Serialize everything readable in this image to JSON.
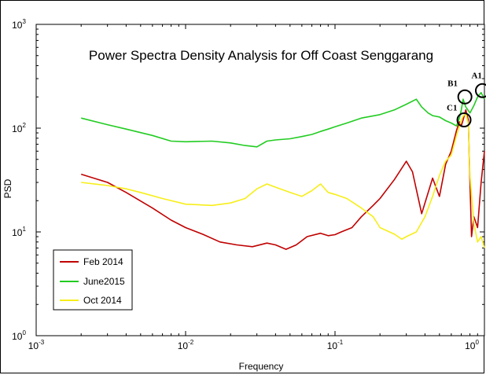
{
  "chart_data": {
    "type": "line",
    "title": "Power Spectra Density Analysis for Off Coast Senggarang",
    "xlabel": "Frequency",
    "ylabel": "PSD",
    "xscale": "log",
    "yscale": "log",
    "xlim": [
      0.001,
      1
    ],
    "ylim": [
      1,
      1000
    ],
    "x_ticks": [
      {
        "base": "10",
        "exp": "-3",
        "value": 0.001
      },
      {
        "base": "10",
        "exp": "-2",
        "value": 0.01
      },
      {
        "base": "10",
        "exp": "-1",
        "value": 0.1
      },
      {
        "base": "10",
        "exp": "0",
        "value": 1
      }
    ],
    "y_ticks": [
      {
        "base": "10",
        "exp": "0",
        "value": 1
      },
      {
        "base": "10",
        "exp": "1",
        "value": 10
      },
      {
        "base": "10",
        "exp": "2",
        "value": 100
      },
      {
        "base": "10",
        "exp": "3",
        "value": 1000
      }
    ],
    "grid": false,
    "legend_position": "bottom-left",
    "series": [
      {
        "name": "Feb 2014",
        "color": "#c00000",
        "points": [
          [
            0.002,
            36
          ],
          [
            0.003,
            30
          ],
          [
            0.004,
            24
          ],
          [
            0.006,
            17
          ],
          [
            0.008,
            13
          ],
          [
            0.01,
            11
          ],
          [
            0.013,
            9.5
          ],
          [
            0.017,
            8
          ],
          [
            0.022,
            7.5
          ],
          [
            0.028,
            7.2
          ],
          [
            0.035,
            7.8
          ],
          [
            0.04,
            7.5
          ],
          [
            0.047,
            6.8
          ],
          [
            0.055,
            7.5
          ],
          [
            0.065,
            9
          ],
          [
            0.08,
            9.7
          ],
          [
            0.09,
            9.2
          ],
          [
            0.1,
            9.4
          ],
          [
            0.11,
            10
          ],
          [
            0.13,
            11
          ],
          [
            0.15,
            14
          ],
          [
            0.18,
            18
          ],
          [
            0.2,
            21
          ],
          [
            0.25,
            32
          ],
          [
            0.3,
            48
          ],
          [
            0.33,
            38
          ],
          [
            0.38,
            15
          ],
          [
            0.45,
            33
          ],
          [
            0.5,
            22
          ],
          [
            0.55,
            45
          ],
          [
            0.6,
            60
          ],
          [
            0.65,
            95
          ],
          [
            0.68,
            115
          ],
          [
            0.7,
            105
          ],
          [
            0.72,
            120
          ],
          [
            0.75,
            150
          ],
          [
            0.78,
            120
          ],
          [
            0.8,
            30
          ],
          [
            0.82,
            9
          ],
          [
            0.85,
            14
          ],
          [
            0.9,
            11
          ],
          [
            0.95,
            30
          ],
          [
            1.0,
            60
          ]
        ]
      },
      {
        "name": "June2015",
        "color": "#22cc22",
        "points": [
          [
            0.002,
            125
          ],
          [
            0.003,
            108
          ],
          [
            0.004,
            98
          ],
          [
            0.006,
            85
          ],
          [
            0.008,
            75
          ],
          [
            0.01,
            74
          ],
          [
            0.015,
            75
          ],
          [
            0.02,
            72
          ],
          [
            0.025,
            68
          ],
          [
            0.03,
            66
          ],
          [
            0.035,
            75
          ],
          [
            0.04,
            77
          ],
          [
            0.05,
            79
          ],
          [
            0.06,
            83
          ],
          [
            0.07,
            87
          ],
          [
            0.08,
            93
          ],
          [
            0.09,
            98
          ],
          [
            0.1,
            103
          ],
          [
            0.12,
            112
          ],
          [
            0.15,
            125
          ],
          [
            0.2,
            135
          ],
          [
            0.25,
            150
          ],
          [
            0.3,
            170
          ],
          [
            0.35,
            190
          ],
          [
            0.38,
            160
          ],
          [
            0.42,
            140
          ],
          [
            0.45,
            132
          ],
          [
            0.5,
            128
          ],
          [
            0.55,
            118
          ],
          [
            0.6,
            112
          ],
          [
            0.65,
            105
          ],
          [
            0.68,
            125
          ],
          [
            0.7,
            150
          ],
          [
            0.72,
            190
          ],
          [
            0.75,
            160
          ],
          [
            0.8,
            140
          ],
          [
            0.85,
            165
          ],
          [
            0.9,
            200
          ],
          [
            0.95,
            220
          ],
          [
            1.0,
            190
          ]
        ]
      },
      {
        "name": "Oct 2014",
        "color": "#f7ee1a",
        "points": [
          [
            0.002,
            30
          ],
          [
            0.003,
            28
          ],
          [
            0.004,
            26
          ],
          [
            0.005,
            24
          ],
          [
            0.007,
            21
          ],
          [
            0.01,
            18.5
          ],
          [
            0.015,
            18
          ],
          [
            0.02,
            19
          ],
          [
            0.025,
            21
          ],
          [
            0.03,
            26
          ],
          [
            0.035,
            29
          ],
          [
            0.04,
            27
          ],
          [
            0.05,
            24
          ],
          [
            0.06,
            22
          ],
          [
            0.07,
            25
          ],
          [
            0.08,
            29
          ],
          [
            0.09,
            24
          ],
          [
            0.1,
            23
          ],
          [
            0.12,
            21
          ],
          [
            0.15,
            17
          ],
          [
            0.18,
            14
          ],
          [
            0.2,
            11
          ],
          [
            0.25,
            9.5
          ],
          [
            0.28,
            8.5
          ],
          [
            0.3,
            9
          ],
          [
            0.35,
            10
          ],
          [
            0.4,
            14
          ],
          [
            0.45,
            22
          ],
          [
            0.5,
            35
          ],
          [
            0.55,
            48
          ],
          [
            0.6,
            55
          ],
          [
            0.65,
            85
          ],
          [
            0.68,
            105
          ],
          [
            0.7,
            120
          ],
          [
            0.72,
            130
          ],
          [
            0.75,
            140
          ],
          [
            0.78,
            110
          ],
          [
            0.8,
            35
          ],
          [
            0.85,
            12
          ],
          [
            0.9,
            8
          ],
          [
            0.95,
            9
          ],
          [
            1.0,
            7
          ]
        ]
      }
    ],
    "annotations": [
      {
        "label": "A1",
        "x": 0.97,
        "y": 230
      },
      {
        "label": "B1",
        "x": 0.74,
        "y": 200
      },
      {
        "label": "C1",
        "x": 0.73,
        "y": 120
      }
    ]
  }
}
